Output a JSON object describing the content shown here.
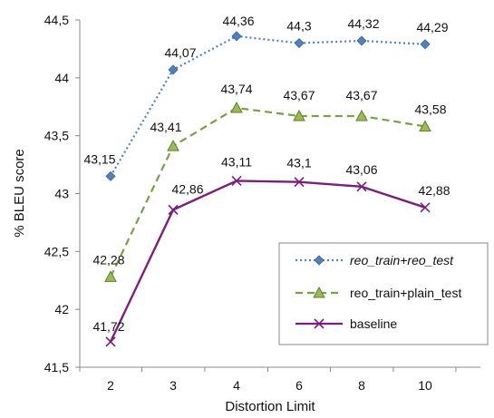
{
  "chart_data": {
    "type": "line",
    "title": "",
    "xlabel": "Distortion Limit",
    "ylabel": "% BLEU score",
    "x": [
      "2",
      "3",
      "4",
      "6",
      "8",
      "10"
    ],
    "ylim": [
      41.5,
      44.5
    ],
    "yticks": [
      41.5,
      42,
      42.5,
      43,
      43.5,
      44,
      44.5
    ],
    "ytick_labels": [
      "41,5",
      "42",
      "42,5",
      "43",
      "43,5",
      "44",
      "44,5"
    ],
    "grid": false,
    "legend_position": "bottom-right",
    "series": [
      {
        "name": "reo_train+reo_test",
        "values": [
          43.15,
          44.07,
          44.36,
          44.3,
          44.32,
          44.29
        ],
        "labels": [
          "43,15",
          "44,07",
          "44,36",
          "44,3",
          "44,32",
          "44,29"
        ],
        "color": "#4f81bd",
        "line_style": "dotted",
        "marker": "diamond"
      },
      {
        "name": "reo_train+plain_test",
        "values": [
          42.28,
          43.41,
          43.74,
          43.67,
          43.67,
          43.58
        ],
        "labels": [
          "42,28",
          "43,41",
          "43,74",
          "43,67",
          "43,67",
          "43,58"
        ],
        "color": "#77a047",
        "line_style": "dashed",
        "marker": "triangle"
      },
      {
        "name": "baseline",
        "values": [
          41.72,
          42.86,
          43.11,
          43.1,
          43.06,
          42.88
        ],
        "labels": [
          "41,72",
          "42,86",
          "43,11",
          "43,1",
          "43,06",
          "42,88"
        ],
        "color": "#7b1f7a",
        "line_style": "solid",
        "marker": "x"
      }
    ]
  }
}
